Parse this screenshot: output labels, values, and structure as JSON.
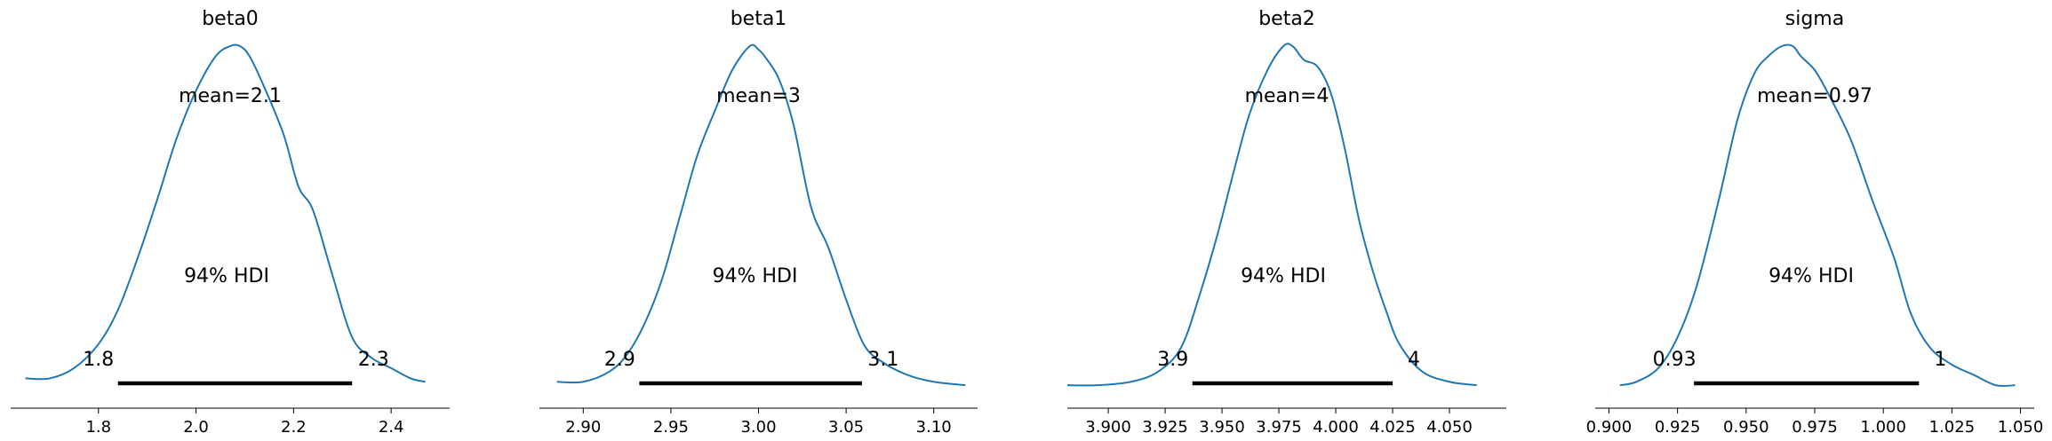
{
  "chart_data": [
    {
      "type": "area",
      "title": "beta0",
      "mean_label": "mean=2.1",
      "hdi_label": "94% HDI",
      "hdi": [
        1.84,
        2.32
      ],
      "hdi_labels": [
        "1.8",
        "2.3"
      ],
      "xlim": [
        1.62,
        2.52
      ],
      "xticks": [
        1.8,
        2.0,
        2.2,
        2.4
      ],
      "xtick_labels": [
        "1.8",
        "2.0",
        "2.2",
        "2.4"
      ],
      "color": "#1f77b4",
      "density": {
        "x": [
          1.65,
          1.7,
          1.75,
          1.8,
          1.84,
          1.88,
          1.92,
          1.96,
          2.0,
          2.04,
          2.07,
          2.09,
          2.11,
          2.14,
          2.18,
          2.21,
          2.24,
          2.28,
          2.32,
          2.36,
          2.4,
          2.44,
          2.47
        ],
        "y": [
          0.03,
          0.03,
          0.06,
          0.13,
          0.23,
          0.38,
          0.55,
          0.73,
          0.87,
          0.97,
          1.0,
          1.0,
          0.97,
          0.88,
          0.74,
          0.59,
          0.52,
          0.33,
          0.15,
          0.09,
          0.06,
          0.03,
          0.02
        ]
      }
    },
    {
      "type": "area",
      "title": "beta1",
      "mean_label": "mean=3",
      "hdi_label": "94% HDI",
      "hdi": [
        2.932,
        3.059
      ],
      "hdi_labels": [
        "2.9",
        "3.1"
      ],
      "xlim": [
        2.875,
        3.125
      ],
      "xticks": [
        2.9,
        2.95,
        3.0,
        3.05,
        3.1
      ],
      "xtick_labels": [
        "2.90",
        "2.95",
        "3.00",
        "3.05",
        "3.10"
      ],
      "color": "#1f77b4",
      "density": {
        "x": [
          2.885,
          2.9,
          2.915,
          2.925,
          2.935,
          2.945,
          2.955,
          2.965,
          2.975,
          2.985,
          2.995,
          3.0,
          3.005,
          3.012,
          3.02,
          3.03,
          3.04,
          3.05,
          3.06,
          3.07,
          3.085,
          3.1,
          3.118
        ],
        "y": [
          0.02,
          0.02,
          0.05,
          0.1,
          0.19,
          0.32,
          0.5,
          0.68,
          0.81,
          0.93,
          1.0,
          0.99,
          0.96,
          0.9,
          0.77,
          0.53,
          0.41,
          0.26,
          0.13,
          0.08,
          0.04,
          0.02,
          0.01
        ]
      }
    },
    {
      "type": "area",
      "title": "beta2",
      "mean_label": "mean=4",
      "hdi_label": "94% HDI",
      "hdi": [
        3.937,
        4.025
      ],
      "hdi_labels": [
        "3.9",
        "4"
      ],
      "xlim": [
        3.882,
        4.075
      ],
      "xticks": [
        3.9,
        3.925,
        3.95,
        3.975,
        4.0,
        4.025,
        4.05
      ],
      "xtick_labels": [
        "3.900",
        "3.925",
        "3.950",
        "3.975",
        "4.000",
        "4.025",
        "4.050"
      ],
      "color": "#1f77b4",
      "density": {
        "x": [
          3.882,
          3.895,
          3.91,
          3.922,
          3.932,
          3.94,
          3.948,
          3.955,
          3.962,
          3.97,
          3.977,
          3.981,
          3.986,
          3.992,
          3.998,
          4.004,
          4.01,
          4.016,
          4.022,
          4.028,
          4.038,
          4.05,
          4.062
        ],
        "y": [
          0.01,
          0.01,
          0.02,
          0.05,
          0.12,
          0.27,
          0.45,
          0.63,
          0.8,
          0.93,
          1.0,
          1.0,
          0.96,
          0.94,
          0.86,
          0.7,
          0.5,
          0.35,
          0.23,
          0.13,
          0.05,
          0.02,
          0.01
        ]
      }
    },
    {
      "type": "area",
      "title": "sigma",
      "mean_label": "mean=0.97",
      "hdi_label": "94% HDI",
      "hdi": [
        0.931,
        1.013
      ],
      "hdi_labels": [
        "0.93",
        "1"
      ],
      "xlim": [
        0.895,
        1.055
      ],
      "xticks": [
        0.9,
        0.925,
        0.95,
        0.975,
        1.0,
        1.025,
        1.05
      ],
      "xtick_labels": [
        "0.900",
        "0.925",
        "0.950",
        "0.975",
        "1.000",
        "1.025",
        "1.050"
      ],
      "color": "#1f77b4",
      "density": {
        "x": [
          0.904,
          0.91,
          0.918,
          0.925,
          0.932,
          0.94,
          0.947,
          0.953,
          0.958,
          0.963,
          0.967,
          0.97,
          0.975,
          0.98,
          0.988,
          0.996,
          1.004,
          1.01,
          1.017,
          1.025,
          1.033,
          1.041,
          1.048
        ],
        "y": [
          0.01,
          0.02,
          0.06,
          0.15,
          0.3,
          0.55,
          0.79,
          0.92,
          0.97,
          1.0,
          1.0,
          0.97,
          0.93,
          0.86,
          0.73,
          0.55,
          0.38,
          0.22,
          0.12,
          0.07,
          0.04,
          0.01,
          0.01
        ]
      }
    }
  ]
}
